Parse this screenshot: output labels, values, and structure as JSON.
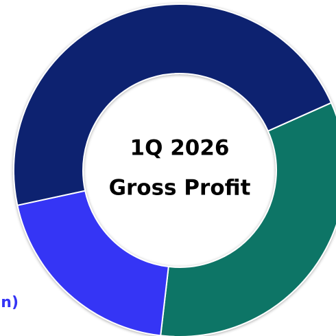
{
  "chart_data": {
    "type": "pie",
    "title": "1Q 2026",
    "subtitle": "Gross Profit",
    "annotation": "n)",
    "values": [
      33.5,
      19.8,
      46.7
    ],
    "colors": [
      "#0b7466",
      "#3434f5",
      "#0a2270"
    ],
    "donut": true
  }
}
